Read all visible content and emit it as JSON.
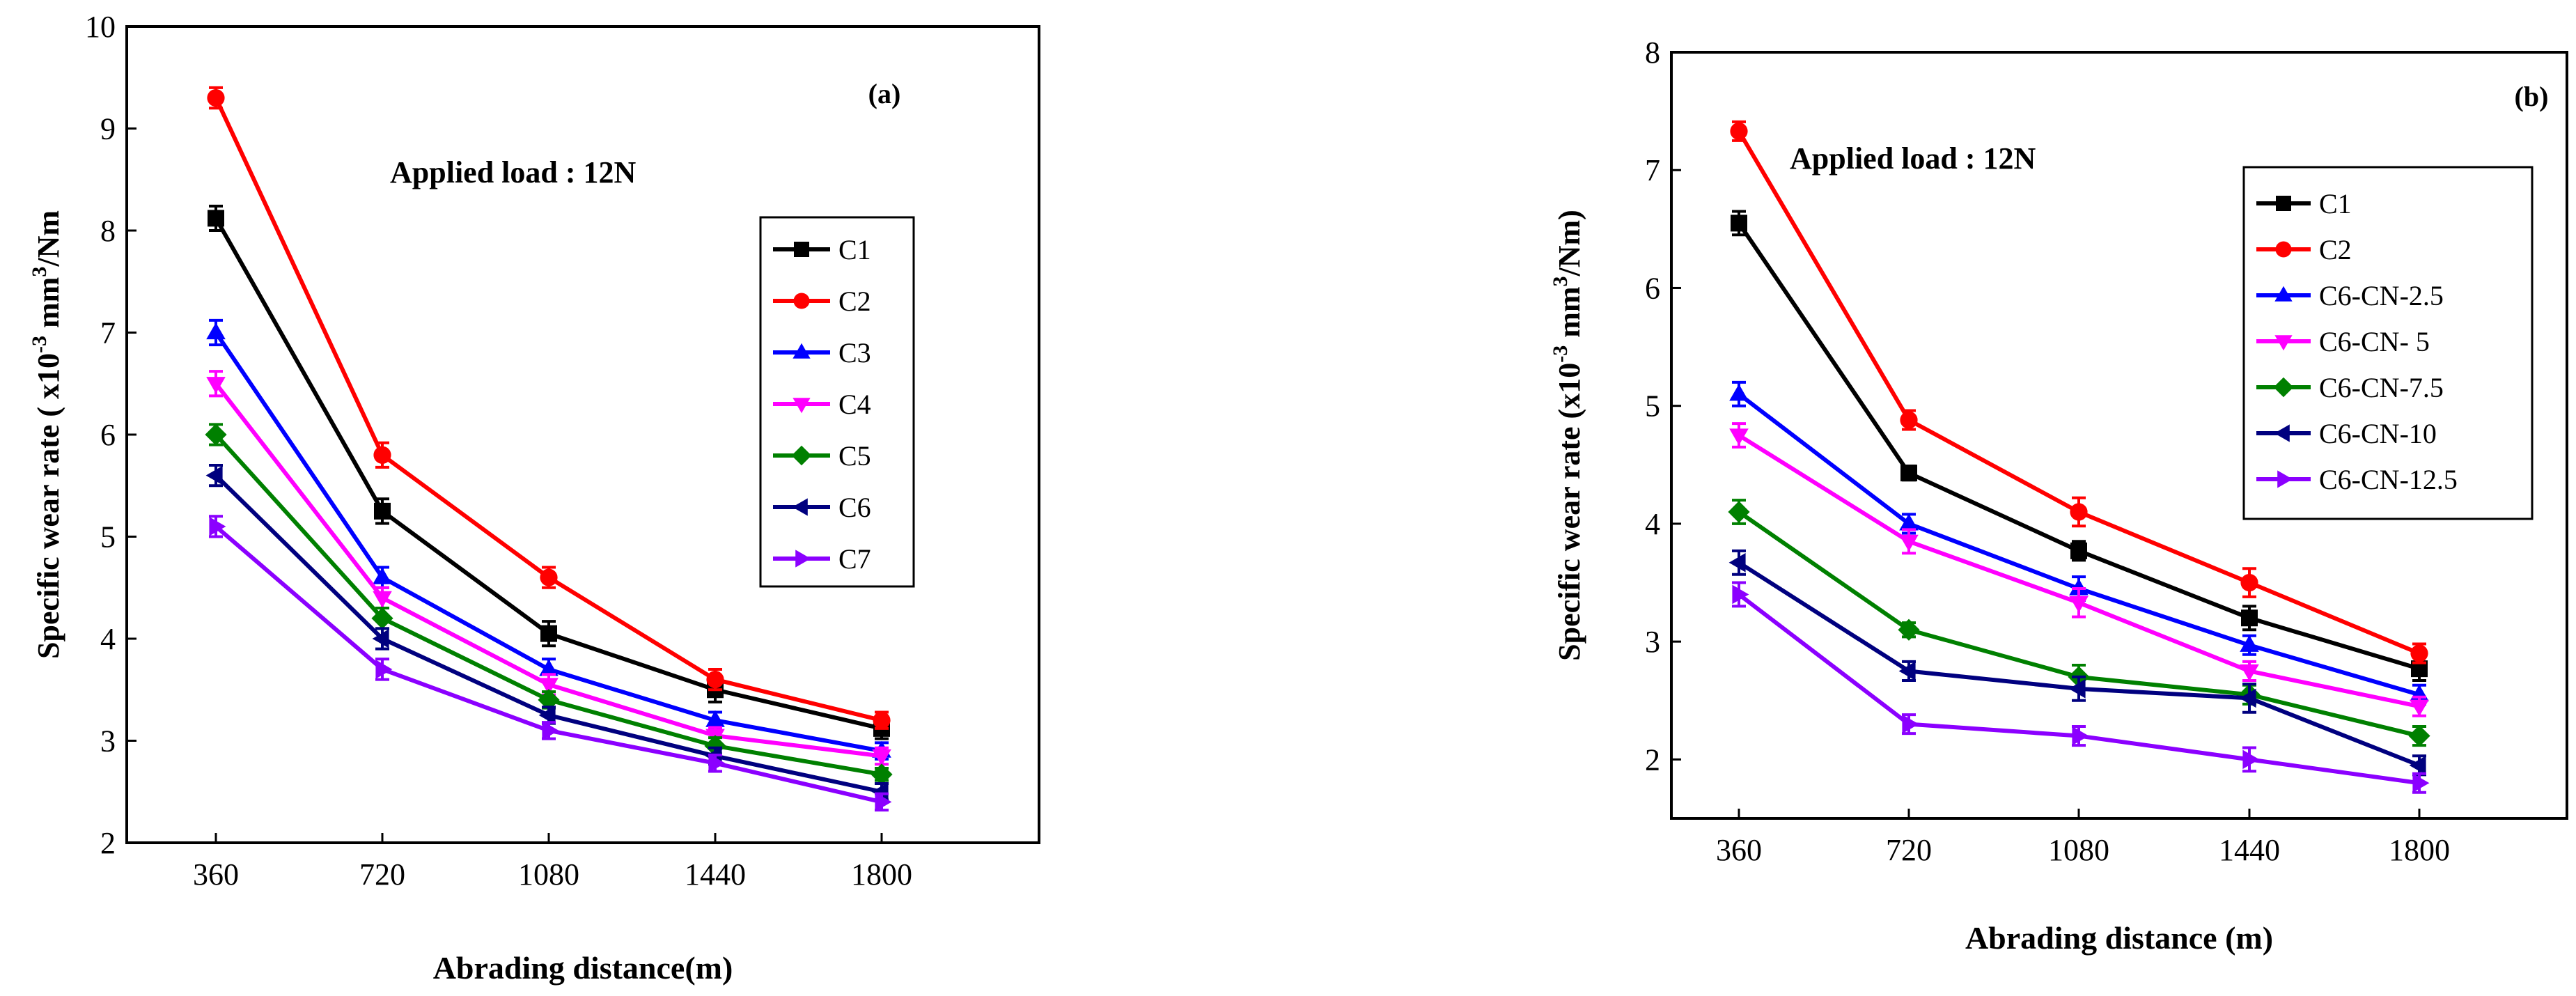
{
  "chart_data": [
    {
      "type": "line",
      "panel": "(a)",
      "annotation": "Applied load : 12N",
      "xlabel": "Abrading distance(m)",
      "ylabel": "Specific wear rate ( x10-3 mm3/Nm",
      "ylabel_parts": {
        "pre": "Specific wear rate ( x10",
        "exp1": "-3",
        "mid": " mm",
        "exp2": "3",
        "post": "/Nm"
      },
      "categories": [
        360,
        720,
        1080,
        1440,
        1800
      ],
      "ylim": [
        2,
        10
      ],
      "yticks": [
        2,
        3,
        4,
        5,
        6,
        7,
        8,
        9,
        10
      ],
      "legend_position": "right-center",
      "series": [
        {
          "name": "C1",
          "color": "#000000",
          "marker": "square",
          "values": [
            8.12,
            5.25,
            4.05,
            3.5,
            3.12
          ],
          "errors": [
            0.12,
            0.12,
            0.12,
            0.12,
            0.1
          ]
        },
        {
          "name": "C2",
          "color": "#ff0000",
          "marker": "circle",
          "values": [
            9.3,
            5.8,
            4.6,
            3.6,
            3.2
          ],
          "errors": [
            0.1,
            0.12,
            0.1,
            0.1,
            0.08
          ]
        },
        {
          "name": "C3",
          "color": "#0000ff",
          "marker": "triangle-up",
          "values": [
            7.0,
            4.6,
            3.7,
            3.2,
            2.9
          ],
          "errors": [
            0.12,
            0.1,
            0.1,
            0.08,
            0.08
          ]
        },
        {
          "name": "C4",
          "color": "#ff00ff",
          "marker": "triangle-down",
          "values": [
            6.5,
            4.4,
            3.55,
            3.05,
            2.85
          ],
          "errors": [
            0.12,
            0.1,
            0.1,
            0.08,
            0.08
          ]
        },
        {
          "name": "C5",
          "color": "#008000",
          "marker": "diamond",
          "values": [
            6.0,
            4.2,
            3.4,
            2.95,
            2.67
          ],
          "errors": [
            0.1,
            0.1,
            0.08,
            0.08,
            0.06
          ]
        },
        {
          "name": "C6",
          "color": "#00007f",
          "marker": "triangle-left",
          "values": [
            5.6,
            4.0,
            3.25,
            2.85,
            2.5
          ],
          "errors": [
            0.1,
            0.1,
            0.08,
            0.08,
            0.08
          ]
        },
        {
          "name": "C7",
          "color": "#8b00ff",
          "marker": "triangle-right",
          "values": [
            5.1,
            3.7,
            3.1,
            2.78,
            2.4
          ],
          "errors": [
            0.1,
            0.1,
            0.08,
            0.08,
            0.08
          ]
        }
      ]
    },
    {
      "type": "line",
      "panel": "(b)",
      "annotation": "Applied load : 12N",
      "xlabel": "Abrading distance (m)",
      "ylabel": "Specific wear rate (x10-3 mm3/Nm)",
      "ylabel_parts": {
        "pre": "Specific wear rate (x10",
        "exp1": "-3",
        "mid": " mm",
        "exp2": "3",
        "post": "/Nm)"
      },
      "categories": [
        360,
        720,
        1080,
        1440,
        1800
      ],
      "ylim": [
        1.5,
        8
      ],
      "yticks": [
        2,
        3,
        4,
        5,
        6,
        7,
        8
      ],
      "legend_position": "top-right",
      "series": [
        {
          "name": "C1",
          "color": "#000000",
          "marker": "square",
          "values": [
            6.55,
            4.43,
            3.77,
            3.2,
            2.77
          ],
          "errors": [
            0.1,
            0.06,
            0.08,
            0.1,
            0.1
          ]
        },
        {
          "name": "C2",
          "color": "#ff0000",
          "marker": "circle",
          "values": [
            7.33,
            4.88,
            4.1,
            3.5,
            2.9
          ],
          "errors": [
            0.08,
            0.08,
            0.12,
            0.12,
            0.08
          ]
        },
        {
          "name": "C6-CN-2.5",
          "color": "#0000ff",
          "marker": "triangle-up",
          "values": [
            5.1,
            4.0,
            3.45,
            2.97,
            2.55
          ],
          "errors": [
            0.1,
            0.08,
            0.1,
            0.08,
            0.08
          ]
        },
        {
          "name": "C6-CN- 5",
          "color": "#ff00ff",
          "marker": "triangle-down",
          "values": [
            4.75,
            3.85,
            3.33,
            2.75,
            2.45
          ],
          "errors": [
            0.1,
            0.1,
            0.12,
            0.08,
            0.08
          ]
        },
        {
          "name": "C6-CN-7.5",
          "color": "#008000",
          "marker": "diamond",
          "values": [
            4.1,
            3.1,
            2.7,
            2.55,
            2.2
          ],
          "errors": [
            0.1,
            0.06,
            0.1,
            0.08,
            0.08
          ]
        },
        {
          "name": "C6-CN-10",
          "color": "#00007f",
          "marker": "triangle-left",
          "values": [
            3.67,
            2.75,
            2.6,
            2.52,
            1.95
          ],
          "errors": [
            0.1,
            0.08,
            0.1,
            0.12,
            0.08
          ]
        },
        {
          "name": "C6-CN-12.5",
          "color": "#8b00ff",
          "marker": "triangle-right",
          "values": [
            3.4,
            2.3,
            2.2,
            2.0,
            1.8
          ],
          "errors": [
            0.1,
            0.08,
            0.08,
            0.1,
            0.08
          ]
        }
      ]
    }
  ]
}
